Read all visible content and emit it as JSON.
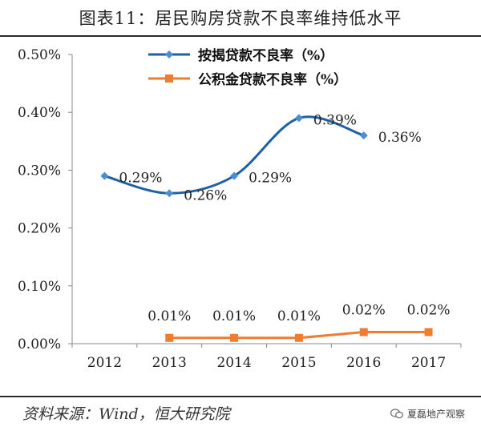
{
  "title": "图表11：居民购房贷款不良率维持低水平",
  "source": "资料来源：Wind，恒大研究院",
  "watermark": "夏磊地产观察",
  "colors": {
    "series1": "#4a8fd4",
    "series1_line": "#1f5fa6",
    "series2": "#ee7d31",
    "axis": "#888888"
  },
  "chart_data": {
    "type": "line",
    "title": "",
    "xlabel": "",
    "ylabel": "",
    "categories": [
      "2012",
      "2013",
      "2014",
      "2015",
      "2016",
      "2017"
    ],
    "ylim": [
      0,
      0.5
    ],
    "yticks": [
      "0.00%",
      "0.10%",
      "0.20%",
      "0.30%",
      "0.40%",
      "0.50%"
    ],
    "grid": false,
    "legend_position": "top",
    "series": [
      {
        "name": "按揭贷款不良率（%）",
        "values": [
          0.29,
          0.26,
          0.29,
          0.39,
          0.36
        ],
        "x": [
          "2012",
          "2013",
          "2014",
          "2015",
          "2016"
        ],
        "labels": [
          "0.29%",
          "0.26%",
          "0.29%",
          "0.39%",
          "0.36%"
        ],
        "marker": "diamond",
        "smooth": true
      },
      {
        "name": "公积金贷款不良率（%）",
        "values": [
          0.01,
          0.01,
          0.01,
          0.02,
          0.02
        ],
        "x": [
          "2013",
          "2014",
          "2015",
          "2016",
          "2017"
        ],
        "labels": [
          "0.01%",
          "0.01%",
          "0.01%",
          "0.02%",
          "0.02%"
        ],
        "marker": "square",
        "smooth": false
      }
    ]
  }
}
